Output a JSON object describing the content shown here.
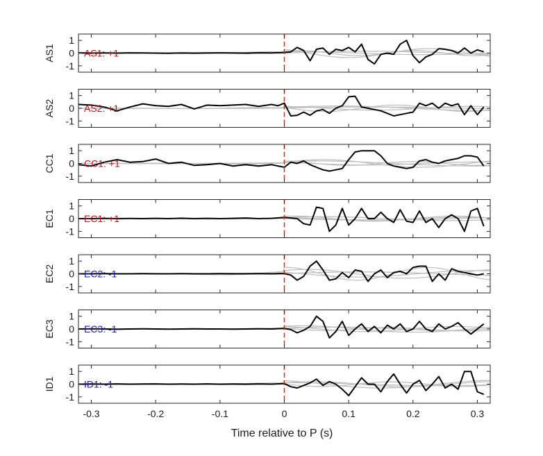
{
  "chart_data": {
    "type": "line",
    "xlabel": "Time relative to P (s)",
    "xlim": [
      -0.32,
      0.32
    ],
    "xticks": [
      -0.3,
      -0.2,
      -0.1,
      0,
      0.1,
      0.2,
      0.3
    ],
    "xtick_labels": [
      "-0.3",
      "-0.2",
      "-0.1",
      "0",
      "0.1",
      "0.2",
      "0.3"
    ],
    "ylim": [
      -1.5,
      1.5
    ],
    "yticks": [
      1,
      0,
      -1
    ],
    "ytick_labels": [
      "1",
      "0",
      "-1"
    ],
    "reference_line": {
      "x": 0,
      "color": "#e0201b",
      "style": "dashed"
    },
    "colors": {
      "stack": "#000000",
      "traces": "#c0c0c0",
      "positive": "#b5121b",
      "negative": "#1b1ba8"
    },
    "panels": [
      {
        "ylabel": "AS1",
        "annotation": "AS1: +1",
        "polarity": "positive",
        "stack": {
          "x": [
            -0.32,
            -0.3,
            -0.28,
            -0.26,
            -0.24,
            -0.22,
            -0.2,
            -0.18,
            -0.16,
            -0.14,
            -0.12,
            -0.1,
            -0.08,
            -0.06,
            -0.04,
            -0.02,
            0,
            0.01,
            0.02,
            0.03,
            0.04,
            0.05,
            0.06,
            0.07,
            0.08,
            0.09,
            0.1,
            0.11,
            0.12,
            0.13,
            0.14,
            0.15,
            0.16,
            0.17,
            0.18,
            0.19,
            0.2,
            0.21,
            0.22,
            0.23,
            0.24,
            0.25,
            0.26,
            0.27,
            0.28,
            0.29,
            0.3,
            0.31
          ],
          "y": [
            0.02,
            0.0,
            0.01,
            0.0,
            0.02,
            0.01,
            0.0,
            -0.01,
            0.01,
            0.0,
            0.01,
            0.02,
            0.01,
            0.0,
            0.03,
            0.01,
            0.05,
            0.1,
            0.45,
            0.2,
            -0.6,
            0.3,
            0.4,
            -0.1,
            0.3,
            0.2,
            0.45,
            0.1,
            0.7,
            -0.5,
            -0.85,
            -0.1,
            0.0,
            -0.1,
            0.7,
            1.0,
            -0.2,
            -0.75,
            -0.3,
            -0.1,
            0.35,
            0.3,
            0.2,
            0.0,
            0.4,
            0.0,
            0.25,
            0.1
          ]
        },
        "traces": [
          {
            "amp": 0.15,
            "period": 0.5,
            "phase": 0.0
          },
          {
            "amp": 0.12,
            "period": 0.4,
            "phase": 1.3
          },
          {
            "amp": 0.35,
            "period": 0.25,
            "phase": 2.2
          },
          {
            "amp": 0.2,
            "period": 0.18,
            "phase": 0.7
          }
        ]
      },
      {
        "ylabel": "AS2",
        "annotation": "AS2: +1",
        "polarity": "positive",
        "stack": {
          "x": [
            -0.32,
            -0.3,
            -0.28,
            -0.26,
            -0.24,
            -0.22,
            -0.2,
            -0.18,
            -0.16,
            -0.14,
            -0.12,
            -0.1,
            -0.08,
            -0.06,
            -0.04,
            -0.02,
            -0.01,
            0,
            0.01,
            0.02,
            0.03,
            0.04,
            0.05,
            0.06,
            0.07,
            0.08,
            0.09,
            0.1,
            0.11,
            0.12,
            0.13,
            0.14,
            0.15,
            0.16,
            0.17,
            0.18,
            0.19,
            0.2,
            0.21,
            0.22,
            0.23,
            0.24,
            0.25,
            0.26,
            0.27,
            0.28,
            0.29,
            0.3,
            0.31
          ],
          "y": [
            0.3,
            0.25,
            0.1,
            -0.2,
            0.1,
            0.35,
            0.2,
            0.15,
            0.3,
            -0.05,
            0.25,
            0.2,
            0.25,
            0.3,
            0.15,
            0.3,
            0.2,
            0.4,
            -0.6,
            -0.55,
            -0.3,
            -0.55,
            -0.2,
            -0.1,
            -0.4,
            0.0,
            0.2,
            0.9,
            0.95,
            0.1,
            0.0,
            -0.1,
            -0.2,
            -0.4,
            -0.6,
            -0.5,
            -0.4,
            -0.3,
            0.4,
            0.2,
            0.4,
            0.0,
            0.4,
            0.2,
            0.35,
            -0.5,
            0.2,
            -0.5,
            0.1
          ]
        },
        "traces": [
          {
            "amp": 0.18,
            "period": 0.45,
            "phase": 0.4
          },
          {
            "amp": 0.15,
            "period": 0.3,
            "phase": 1.8
          },
          {
            "amp": 0.25,
            "period": 0.22,
            "phase": 2.9
          },
          {
            "amp": 0.1,
            "period": 0.6,
            "phase": 0.2
          }
        ]
      },
      {
        "ylabel": "CC1",
        "annotation": "CC1: +1",
        "polarity": "positive",
        "stack": {
          "x": [
            -0.32,
            -0.3,
            -0.28,
            -0.26,
            -0.24,
            -0.22,
            -0.2,
            -0.18,
            -0.16,
            -0.14,
            -0.12,
            -0.1,
            -0.08,
            -0.06,
            -0.04,
            -0.02,
            0,
            0.01,
            0.02,
            0.03,
            0.04,
            0.05,
            0.06,
            0.07,
            0.08,
            0.09,
            0.1,
            0.11,
            0.12,
            0.13,
            0.14,
            0.15,
            0.16,
            0.17,
            0.18,
            0.19,
            0.2,
            0.21,
            0.22,
            0.23,
            0.24,
            0.25,
            0.26,
            0.27,
            0.28,
            0.29,
            0.3,
            0.31
          ],
          "y": [
            -0.1,
            -0.2,
            0.1,
            0.3,
            0.1,
            0.15,
            0.35,
            0.0,
            0.1,
            -0.15,
            -0.1,
            0.0,
            -0.2,
            -0.1,
            -0.2,
            -0.1,
            -0.3,
            0.1,
            0.0,
            0.2,
            -0.1,
            -0.3,
            -0.5,
            -0.6,
            -0.5,
            -0.4,
            0.3,
            0.9,
            1.0,
            1.0,
            1.0,
            0.6,
            0.0,
            -0.2,
            -0.3,
            -0.4,
            -0.3,
            0.2,
            0.3,
            0.1,
            0.0,
            0.2,
            0.3,
            0.4,
            0.6,
            0.6,
            0.5,
            -0.2
          ]
        },
        "traces": [
          {
            "amp": 0.2,
            "period": 0.5,
            "phase": 1.0
          },
          {
            "amp": 0.12,
            "period": 0.35,
            "phase": 2.4
          },
          {
            "amp": 0.3,
            "period": 0.3,
            "phase": 0.3
          },
          {
            "amp": 0.15,
            "period": 0.2,
            "phase": 1.6
          }
        ]
      },
      {
        "ylabel": "EC1",
        "annotation": "EC1: +1",
        "polarity": "positive",
        "stack": {
          "x": [
            -0.32,
            -0.3,
            -0.28,
            -0.26,
            -0.24,
            -0.22,
            -0.2,
            -0.18,
            -0.16,
            -0.14,
            -0.12,
            -0.1,
            -0.08,
            -0.06,
            -0.04,
            -0.02,
            0,
            0.01,
            0.02,
            0.03,
            0.04,
            0.05,
            0.06,
            0.07,
            0.08,
            0.09,
            0.1,
            0.11,
            0.12,
            0.13,
            0.14,
            0.15,
            0.16,
            0.17,
            0.18,
            0.19,
            0.2,
            0.21,
            0.22,
            0.23,
            0.24,
            0.25,
            0.26,
            0.27,
            0.28,
            0.29,
            0.3,
            0.31
          ],
          "y": [
            0.0,
            0.0,
            0.02,
            0.0,
            0.01,
            0.0,
            0.02,
            0.0,
            0.03,
            0.0,
            0.02,
            0.0,
            0.02,
            0.05,
            0.0,
            0.02,
            0.1,
            0.05,
            0.0,
            -0.4,
            -0.5,
            0.9,
            0.8,
            -1.0,
            -0.5,
            0.8,
            -0.5,
            0.0,
            0.8,
            0.0,
            0.0,
            0.5,
            0.0,
            -0.3,
            0.7,
            -0.2,
            -0.3,
            0.6,
            -0.3,
            0.0,
            -0.7,
            0.0,
            0.3,
            0.0,
            -1.0,
            0.6,
            0.8,
            -0.6
          ]
        },
        "traces": [
          {
            "amp": 0.15,
            "period": 0.4,
            "phase": 0.6
          },
          {
            "amp": 0.1,
            "period": 0.3,
            "phase": 2.0
          },
          {
            "amp": 0.2,
            "period": 0.25,
            "phase": 1.2
          },
          {
            "amp": 0.12,
            "period": 0.5,
            "phase": 3.0
          }
        ]
      },
      {
        "ylabel": "EC2",
        "annotation": "EC2: -1",
        "polarity": "negative",
        "stack": {
          "x": [
            -0.32,
            -0.3,
            -0.28,
            -0.26,
            -0.24,
            -0.22,
            -0.2,
            -0.18,
            -0.16,
            -0.14,
            -0.12,
            -0.1,
            -0.08,
            -0.06,
            -0.04,
            -0.02,
            0,
            0.01,
            0.02,
            0.03,
            0.04,
            0.05,
            0.06,
            0.07,
            0.08,
            0.09,
            0.1,
            0.11,
            0.12,
            0.13,
            0.14,
            0.15,
            0.16,
            0.17,
            0.18,
            0.19,
            0.2,
            0.21,
            0.22,
            0.23,
            0.24,
            0.25,
            0.26,
            0.27,
            0.28,
            0.29,
            0.3,
            0.31
          ],
          "y": [
            0.0,
            0.0,
            0.01,
            0.0,
            0.0,
            0.01,
            0.0,
            0.0,
            0.01,
            0.0,
            0.0,
            0.01,
            0.0,
            0.0,
            0.01,
            0.0,
            0.02,
            -0.1,
            -0.5,
            -0.2,
            0.6,
            1.0,
            0.3,
            -0.5,
            -0.4,
            0.1,
            -0.3,
            0.3,
            0.2,
            -0.6,
            0.0,
            0.3,
            -0.3,
            0.1,
            0.2,
            0.0,
            0.5,
            0.6,
            0.6,
            -0.6,
            0.0,
            -0.5,
            0.4,
            0.2,
            0.1,
            0.0,
            -0.1,
            0.0
          ]
        },
        "traces": [
          {
            "amp": 0.35,
            "period": 0.3,
            "phase": 0.8
          },
          {
            "amp": 0.25,
            "period": 0.35,
            "phase": 2.6
          },
          {
            "amp": 0.5,
            "period": 0.22,
            "phase": 1.5
          },
          {
            "amp": 0.15,
            "period": 0.5,
            "phase": 0.1
          }
        ]
      },
      {
        "ylabel": "EC3",
        "annotation": "EC3: -1",
        "polarity": "negative",
        "stack": {
          "x": [
            -0.32,
            -0.3,
            -0.28,
            -0.26,
            -0.24,
            -0.22,
            -0.2,
            -0.18,
            -0.16,
            -0.14,
            -0.12,
            -0.1,
            -0.08,
            -0.06,
            -0.04,
            -0.02,
            0,
            0.01,
            0.02,
            0.03,
            0.04,
            0.05,
            0.06,
            0.07,
            0.08,
            0.09,
            0.1,
            0.11,
            0.12,
            0.13,
            0.14,
            0.15,
            0.16,
            0.17,
            0.18,
            0.19,
            0.2,
            0.21,
            0.22,
            0.23,
            0.24,
            0.25,
            0.26,
            0.27,
            0.28,
            0.29,
            0.3,
            0.31
          ],
          "y": [
            0.0,
            0.01,
            0.0,
            -0.02,
            0.0,
            0.01,
            0.0,
            -0.01,
            0.0,
            0.01,
            0.0,
            0.0,
            -0.01,
            0.0,
            0.01,
            0.0,
            0.05,
            -0.05,
            -0.3,
            -0.1,
            0.2,
            1.0,
            0.6,
            -0.7,
            -0.2,
            0.6,
            -0.5,
            0.0,
            0.4,
            -0.2,
            0.2,
            -0.3,
            0.3,
            0.0,
            0.4,
            -0.2,
            0.0,
            0.6,
            0.0,
            -0.2,
            0.4,
            0.0,
            0.2,
            0.5,
            0.0,
            -0.4,
            0.0,
            0.4
          ]
        },
        "traces": [
          {
            "amp": 0.15,
            "period": 0.4,
            "phase": 0.3
          },
          {
            "amp": 0.2,
            "period": 0.28,
            "phase": 1.9
          },
          {
            "amp": 0.12,
            "period": 0.2,
            "phase": 2.7
          },
          {
            "amp": 0.25,
            "period": 0.35,
            "phase": 1.1
          }
        ]
      },
      {
        "ylabel": "ID1",
        "annotation": "ID1: -1",
        "polarity": "negative",
        "stack": {
          "x": [
            -0.32,
            -0.3,
            -0.28,
            -0.26,
            -0.24,
            -0.22,
            -0.2,
            -0.18,
            -0.16,
            -0.14,
            -0.12,
            -0.1,
            -0.08,
            -0.06,
            -0.04,
            -0.02,
            0,
            0.01,
            0.02,
            0.03,
            0.04,
            0.05,
            0.06,
            0.07,
            0.08,
            0.09,
            0.1,
            0.11,
            0.12,
            0.13,
            0.14,
            0.15,
            0.16,
            0.17,
            0.18,
            0.19,
            0.2,
            0.21,
            0.22,
            0.23,
            0.24,
            0.25,
            0.26,
            0.27,
            0.28,
            0.29,
            0.3,
            0.31
          ],
          "y": [
            0.0,
            0.01,
            0.0,
            0.02,
            0.0,
            0.01,
            0.02,
            0.0,
            0.01,
            0.0,
            0.02,
            0.0,
            0.01,
            0.0,
            0.02,
            0.0,
            0.05,
            -0.2,
            -0.3,
            -0.1,
            0.1,
            0.4,
            -0.1,
            0.2,
            0.0,
            -0.4,
            -0.9,
            -0.2,
            0.5,
            0.0,
            0.0,
            -0.6,
            0.2,
            0.8,
            0.0,
            -0.7,
            0.0,
            0.3,
            -0.5,
            0.0,
            0.6,
            -0.3,
            0.0,
            -0.4,
            1.0,
            1.0,
            -0.6,
            -0.8
          ]
        },
        "traces": [
          {
            "amp": 0.3,
            "period": 0.35,
            "phase": 2.0
          },
          {
            "amp": 0.2,
            "period": 0.28,
            "phase": 0.5
          },
          {
            "amp": 0.12,
            "period": 0.45,
            "phase": 1.4
          },
          {
            "amp": 0.18,
            "period": 0.22,
            "phase": 3.1
          }
        ]
      }
    ]
  }
}
